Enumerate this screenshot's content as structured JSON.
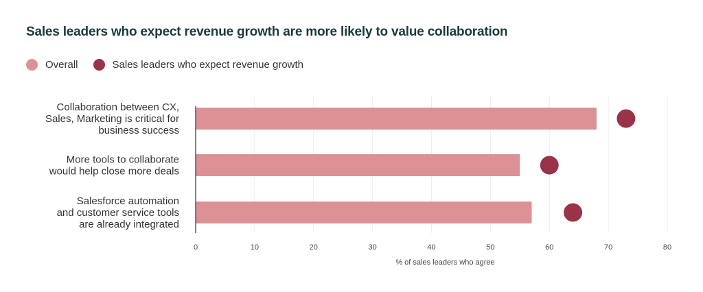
{
  "chart_data": {
    "type": "bar",
    "title": "Sales leaders who expect revenue growth are more likely to value collaboration",
    "xlabel": "% of sales leaders who agree",
    "ylabel": "",
    "xlim": [
      0,
      80
    ],
    "x_ticks": [
      0,
      10,
      20,
      30,
      40,
      50,
      60,
      70,
      80
    ],
    "grid": true,
    "legend_position": "top-left",
    "categories": [
      [
        "Collaboration between CX,",
        "Sales, Marketing is critical for",
        "business success"
      ],
      [
        "More tools to collaborate",
        "would help close more deals"
      ],
      [
        "Salesforce automation",
        "and customer service tools",
        "are already integrated"
      ]
    ],
    "series": [
      {
        "name": "Overall",
        "mark": "bar",
        "color": "#dc9195",
        "values": [
          68,
          55,
          57
        ]
      },
      {
        "name": "Sales leaders who expect revenue growth",
        "mark": "dot",
        "color": "#993347",
        "values": [
          73,
          60,
          64
        ]
      }
    ]
  }
}
